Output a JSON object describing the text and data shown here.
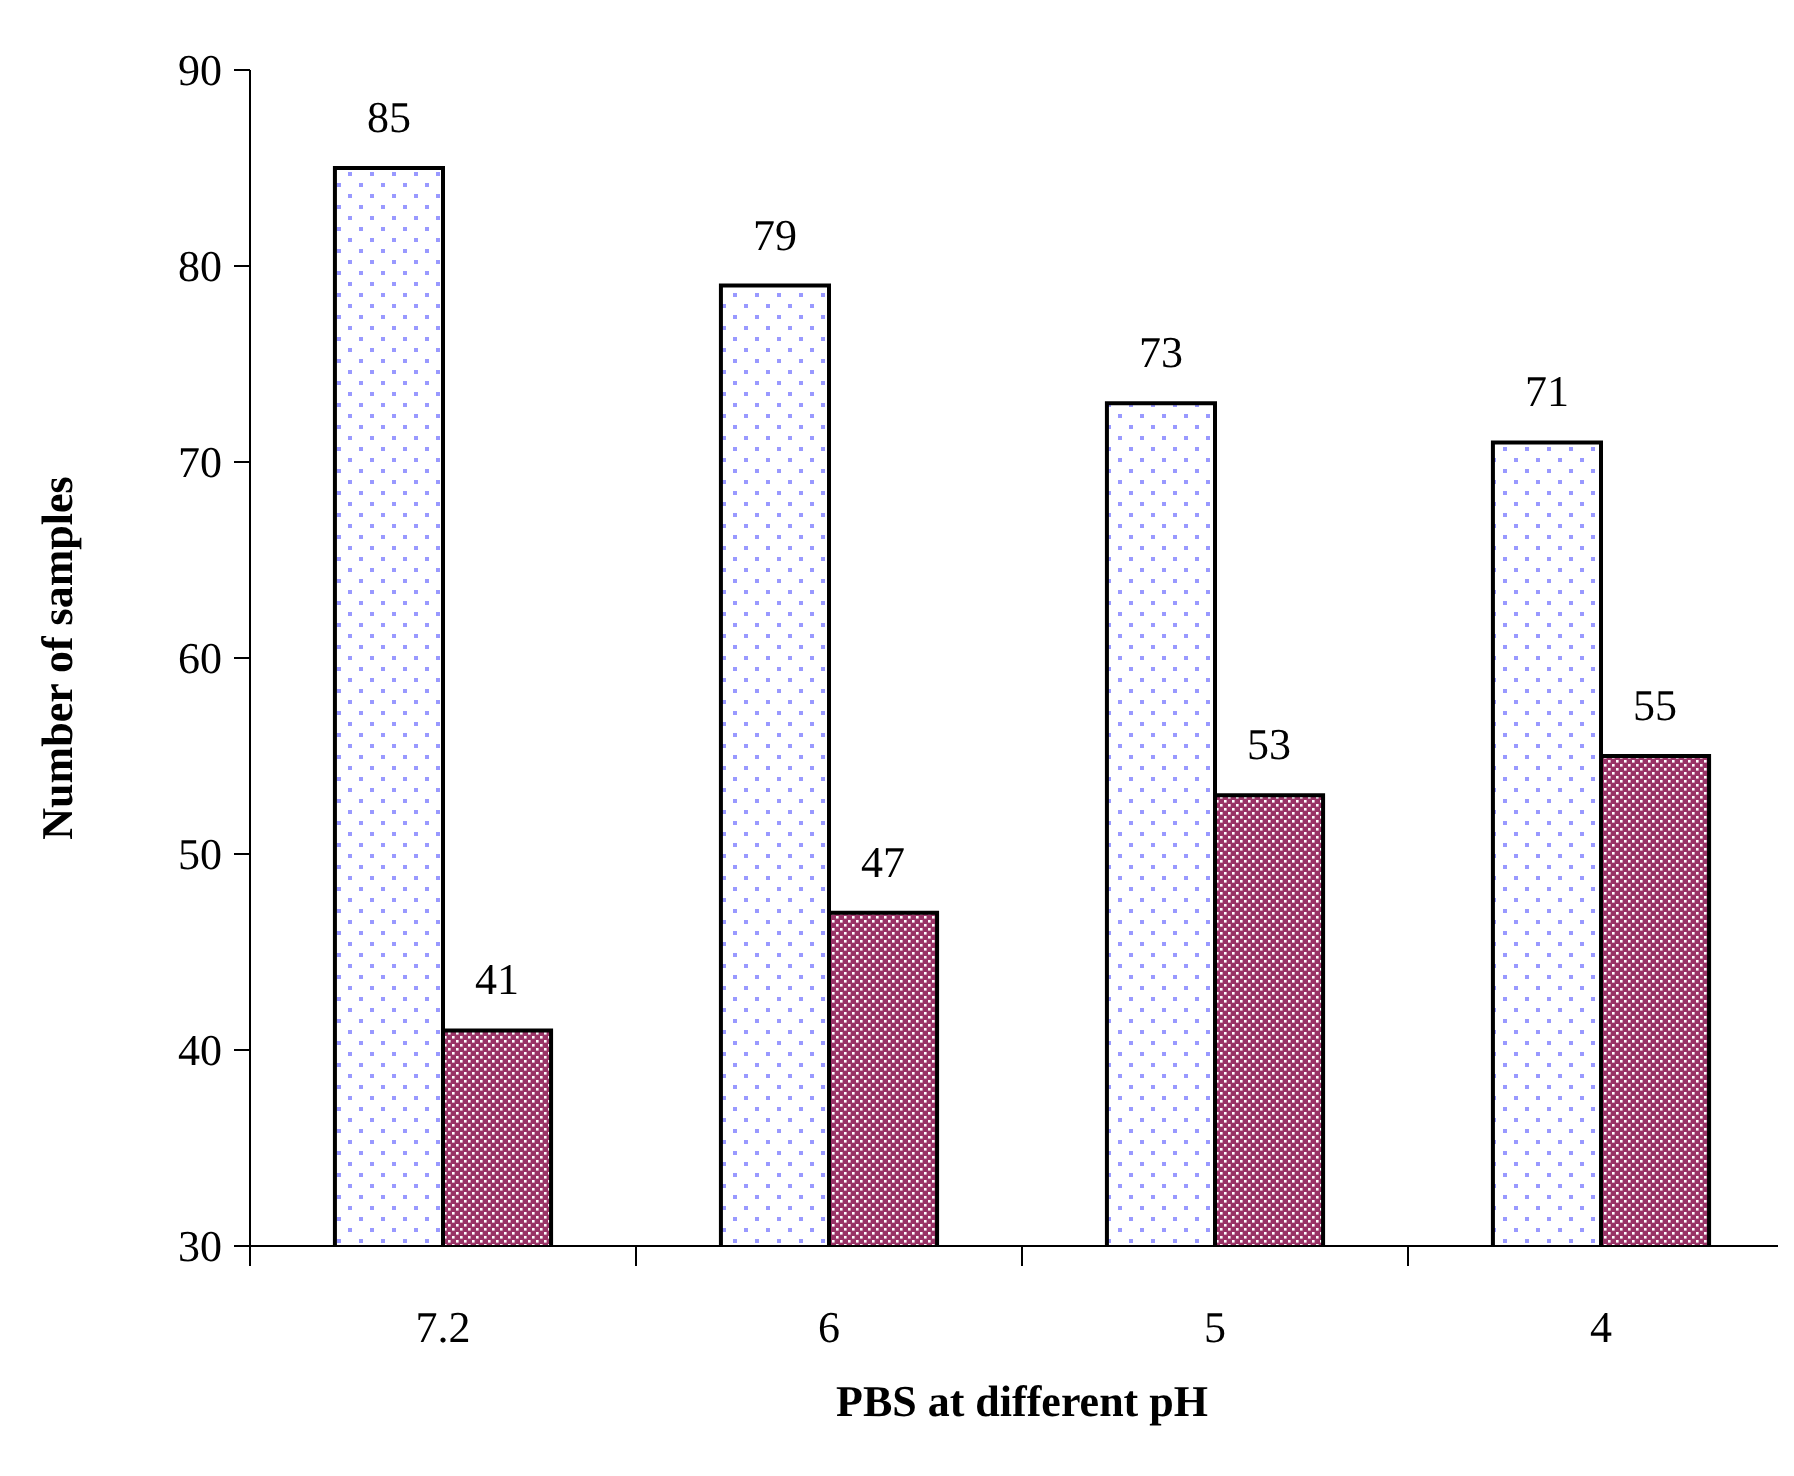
{
  "chart_data": {
    "type": "bar",
    "xlabel": "PBS at different pH",
    "ylabel": "Number of samples",
    "categories": [
      "7.2",
      "6",
      "5",
      "4"
    ],
    "series": [
      {
        "color": "#9999ff",
        "values": [
          85,
          79,
          73,
          71
        ]
      },
      {
        "color": "#993366",
        "values": [
          41,
          47,
          53,
          55
        ]
      }
    ],
    "ylim": [
      30,
      90
    ],
    "yticks": [
      30,
      40,
      50,
      60,
      70,
      80,
      90
    ],
    "data_labels": true,
    "grid": false
  }
}
